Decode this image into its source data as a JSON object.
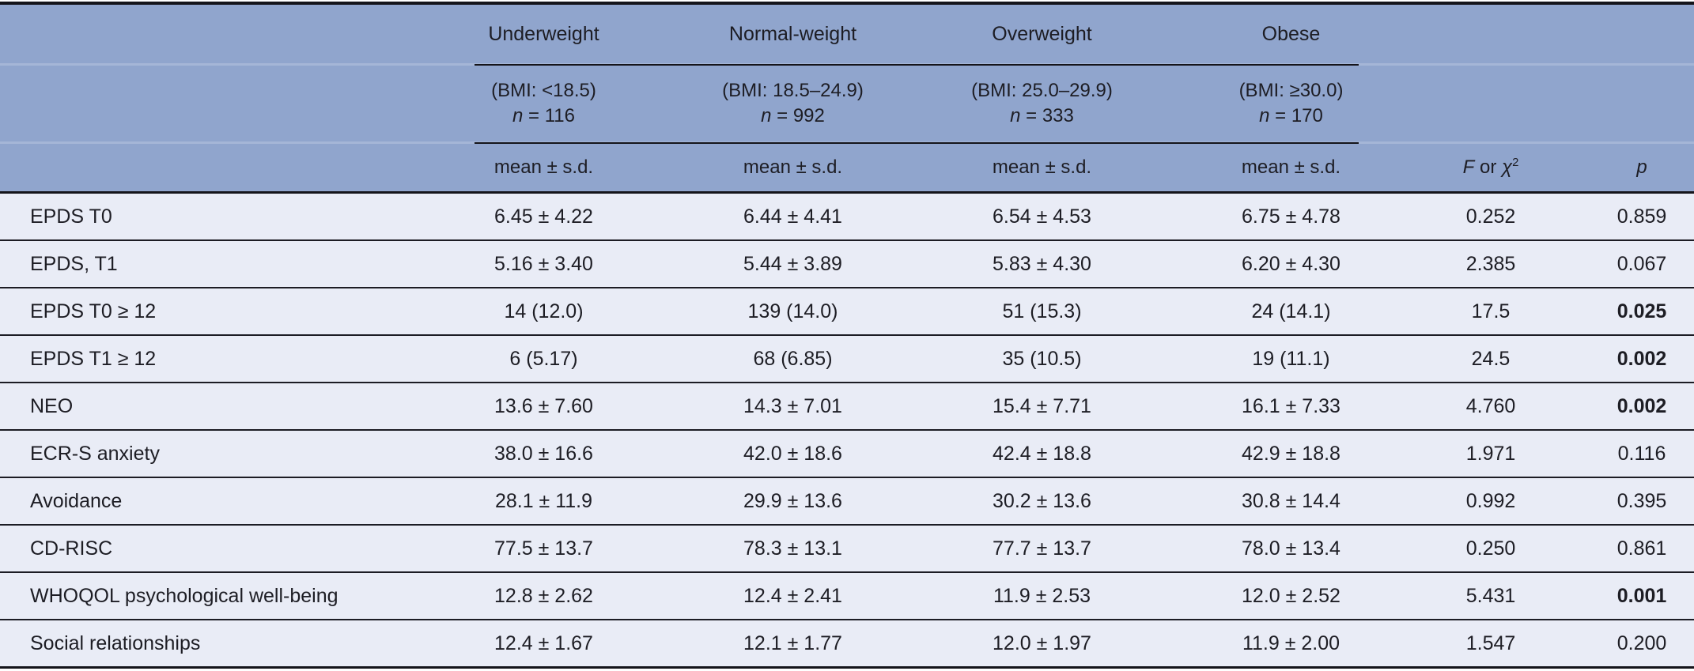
{
  "colors": {
    "header_bg": "#90a5cd",
    "body_bg": "#e9ecf6",
    "line": "#14141a"
  },
  "table": {
    "groups": [
      {
        "label": "Underweight",
        "bmi": "(BMI: <18.5)",
        "n_label": "n",
        "n_value": " = 116"
      },
      {
        "label": "Normal-weight",
        "bmi": "(BMI: 18.5–24.9)",
        "n_label": "n",
        "n_value": " = 992"
      },
      {
        "label": "Overweight",
        "bmi": "(BMI: 25.0–29.9)",
        "n_label": "n",
        "n_value": " = 333"
      },
      {
        "label": "Obese",
        "bmi": "(BMI: ≥30.0)",
        "n_label": "n",
        "n_value": " = 170"
      }
    ],
    "mean_sd_label": "mean ± s.d.",
    "stat_label": {
      "f": "F",
      "or": " or ",
      "chi": "χ",
      "sup": "2"
    },
    "p_label": "p",
    "rows": [
      {
        "label": "EPDS T0",
        "values": [
          "6.45 ± 4.22",
          "6.44 ± 4.41",
          "6.54 ± 4.53",
          "6.75 ± 4.78"
        ],
        "f": "0.252",
        "p": "0.859",
        "p_bold": false
      },
      {
        "label": "EPDS, T1",
        "values": [
          "5.16 ± 3.40",
          "5.44 ± 3.89",
          "5.83 ± 4.30",
          "6.20 ± 4.30"
        ],
        "f": "2.385",
        "p": "0.067",
        "p_bold": false
      },
      {
        "label": "EPDS T0 ≥ 12",
        "values": [
          "14 (12.0)",
          "139 (14.0)",
          "51 (15.3)",
          "24 (14.1)"
        ],
        "f": "17.5",
        "p": "0.025",
        "p_bold": true
      },
      {
        "label": "EPDS T1 ≥ 12",
        "values": [
          "6 (5.17)",
          "68 (6.85)",
          "35 (10.5)",
          "19 (11.1)"
        ],
        "f": "24.5",
        "p": "0.002",
        "p_bold": true
      },
      {
        "label": "NEO",
        "values": [
          "13.6 ± 7.60",
          "14.3 ± 7.01",
          "15.4 ± 7.71",
          "16.1 ± 7.33"
        ],
        "f": "4.760",
        "p": "0.002",
        "p_bold": true
      },
      {
        "label": "ECR-S anxiety",
        "values": [
          "38.0 ± 16.6",
          "42.0 ± 18.6",
          "42.4 ± 18.8",
          "42.9 ± 18.8"
        ],
        "f": "1.971",
        "p": "0.116",
        "p_bold": false
      },
      {
        "label": "Avoidance",
        "values": [
          "28.1 ± 11.9",
          "29.9 ± 13.6",
          "30.2 ± 13.6",
          "30.8 ± 14.4"
        ],
        "f": "0.992",
        "p": "0.395",
        "p_bold": false
      },
      {
        "label": "CD-RISC",
        "values": [
          "77.5 ± 13.7",
          "78.3 ± 13.1",
          "77.7 ± 13.7",
          "78.0 ± 13.4"
        ],
        "f": "0.250",
        "p": "0.861",
        "p_bold": false
      },
      {
        "label": "WHOQOL psychological well-being",
        "values": [
          "12.8 ± 2.62",
          "12.4 ± 2.41",
          "11.9 ± 2.53",
          "12.0 ± 2.52"
        ],
        "f": "5.431",
        "p": "0.001",
        "p_bold": true
      },
      {
        "label": "Social relationships",
        "values": [
          "12.4 ± 1.67",
          "12.1 ± 1.77",
          "12.0 ± 1.97",
          "11.9 ± 2.00"
        ],
        "f": "1.547",
        "p": "0.200",
        "p_bold": false
      }
    ]
  }
}
